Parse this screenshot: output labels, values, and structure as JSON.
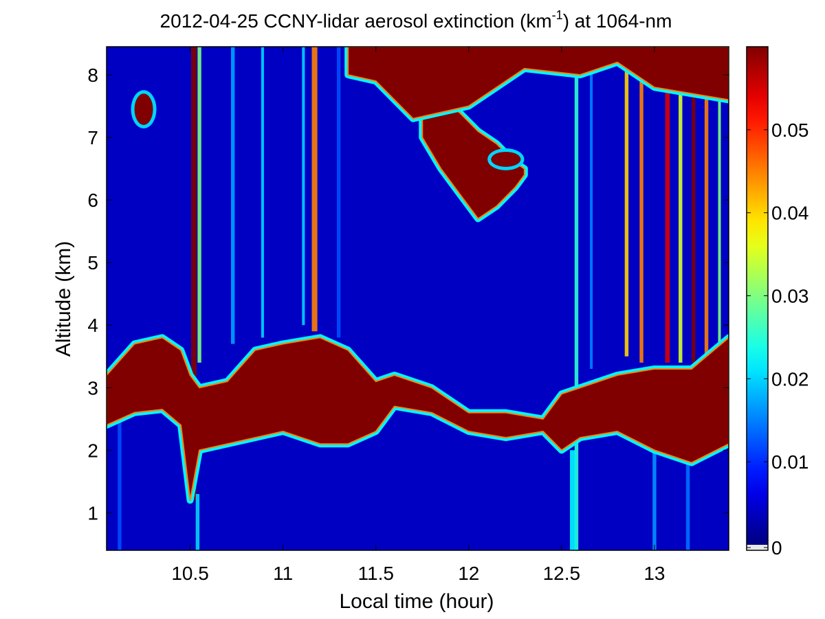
{
  "chart_data": {
    "type": "heatmap",
    "title": {
      "prefix": "2012-04-25 CCNY-lidar aerosol extinction (km",
      "superscript": "-1",
      "suffix": ") at 1064-nm"
    },
    "xlabel": "Local time (hour)",
    "ylabel": "Altitude (km)",
    "xlim": [
      10.05,
      13.4
    ],
    "ylim": [
      0.4,
      8.45
    ],
    "xticks": [
      10.5,
      11,
      11.5,
      12,
      12.5,
      13
    ],
    "xtick_labels": [
      "10.5",
      "11",
      "11.5",
      "12",
      "12.5",
      "13"
    ],
    "yticks": [
      1,
      2,
      3,
      4,
      5,
      6,
      7,
      8
    ],
    "ytick_labels": [
      "1",
      "2",
      "3",
      "4",
      "5",
      "6",
      "7",
      "8"
    ],
    "colorbar": {
      "colormap": "jet",
      "range": [
        0,
        0.06
      ],
      "ticks": [
        0,
        0.01,
        0.02,
        0.03,
        0.04,
        0.05
      ],
      "tick_labels": [
        "0",
        "0.01",
        "0.02",
        "0.03",
        "0.04",
        "0.05"
      ]
    },
    "background": "0.004",
    "features": [
      {
        "name": "boundary layer aerosol top",
        "kind": "layer",
        "x": [
          10.05,
          10.2,
          10.35,
          10.45,
          10.5,
          10.55,
          10.7,
          10.85,
          11.0,
          11.2,
          11.35,
          11.5,
          11.6,
          11.8,
          12.0,
          12.2,
          12.4,
          12.5,
          12.6,
          12.8,
          13.0,
          13.2,
          13.4
        ],
        "top": [
          3.2,
          3.7,
          3.8,
          3.6,
          3.2,
          3.0,
          3.1,
          3.6,
          3.7,
          3.8,
          3.6,
          3.1,
          3.2,
          3.0,
          2.6,
          2.6,
          2.5,
          2.9,
          3.0,
          3.2,
          3.3,
          3.3,
          3.8
        ],
        "bottom": [
          2.4,
          2.6,
          2.65,
          2.4,
          1.2,
          2.0,
          2.1,
          2.2,
          2.3,
          2.1,
          2.1,
          2.3,
          2.7,
          2.6,
          2.3,
          2.2,
          2.3,
          2.0,
          2.2,
          2.3,
          2.0,
          1.8,
          2.1
        ],
        "value": 0.06
      },
      {
        "name": "mid-level smoke plume",
        "kind": "plume",
        "x": [
          11.75,
          11.85,
          11.95,
          12.05,
          12.15,
          12.25,
          12.3
        ],
        "top": [
          7.9,
          7.6,
          7.4,
          7.1,
          6.9,
          6.6,
          6.5
        ],
        "bottom": [
          7.0,
          6.5,
          6.1,
          5.7,
          5.9,
          6.2,
          6.4
        ],
        "value": 0.06
      },
      {
        "name": "upper layer",
        "kind": "layer",
        "x": [
          11.35,
          11.5,
          11.7,
          12.0,
          12.3,
          12.6,
          12.8,
          13.0,
          13.4
        ],
        "top": [
          8.45,
          8.45,
          8.45,
          8.45,
          8.45,
          8.45,
          8.45,
          8.45,
          8.45
        ],
        "bottom": [
          8.0,
          7.9,
          7.3,
          7.5,
          8.1,
          8.0,
          8.2,
          7.8,
          7.6
        ],
        "value": 0.06
      },
      {
        "name": "isolated cloud",
        "kind": "blob",
        "cx": 10.25,
        "cy": 7.45,
        "rx": 0.05,
        "ry": 0.25,
        "value": 0.06
      },
      {
        "name": "cloud fragment",
        "kind": "blob",
        "cx": 12.2,
        "cy": 6.65,
        "rx": 0.08,
        "ry": 0.12,
        "value": 0.06
      }
    ],
    "columns": [
      {
        "x": 10.12,
        "width": 0.02,
        "y0": 0.4,
        "y1": 3.2,
        "value": 0.012
      },
      {
        "x": 10.52,
        "width": 0.03,
        "y0": 1.2,
        "y1": 8.45,
        "value": 0.06
      },
      {
        "x": 10.55,
        "width": 0.02,
        "y0": 3.4,
        "y1": 8.45,
        "value": 0.03
      },
      {
        "x": 10.54,
        "width": 0.02,
        "y0": 0.4,
        "y1": 1.3,
        "value": 0.02
      },
      {
        "x": 10.73,
        "width": 0.02,
        "y0": 3.7,
        "y1": 8.45,
        "value": 0.017
      },
      {
        "x": 10.89,
        "width": 0.015,
        "y0": 3.8,
        "y1": 8.45,
        "value": 0.02
      },
      {
        "x": 11.17,
        "width": 0.03,
        "y0": 3.9,
        "y1": 8.45,
        "value": 0.045
      },
      {
        "x": 11.11,
        "width": 0.015,
        "y0": 4.0,
        "y1": 8.45,
        "value": 0.02
      },
      {
        "x": 11.3,
        "width": 0.02,
        "y0": 3.8,
        "y1": 8.45,
        "value": 0.012
      },
      {
        "x": 12.58,
        "width": 0.02,
        "y0": 0.4,
        "y1": 8.45,
        "value": 0.025
      },
      {
        "x": 12.66,
        "width": 0.015,
        "y0": 3.3,
        "y1": 8.45,
        "value": 0.015
      },
      {
        "x": 12.85,
        "width": 0.02,
        "y0": 3.5,
        "y1": 8.45,
        "value": 0.04
      },
      {
        "x": 12.93,
        "width": 0.02,
        "y0": 3.4,
        "y1": 8.45,
        "value": 0.045
      },
      {
        "x": 13.07,
        "width": 0.025,
        "y0": 3.4,
        "y1": 8.45,
        "value": 0.055
      },
      {
        "x": 13.14,
        "width": 0.02,
        "y0": 3.4,
        "y1": 8.45,
        "value": 0.035
      },
      {
        "x": 13.21,
        "width": 0.02,
        "y0": 3.4,
        "y1": 8.45,
        "value": 0.06
      },
      {
        "x": 13.28,
        "width": 0.02,
        "y0": 3.4,
        "y1": 8.45,
        "value": 0.045
      },
      {
        "x": 13.35,
        "width": 0.015,
        "y0": 3.6,
        "y1": 8.45,
        "value": 0.03
      },
      {
        "x": 12.56,
        "width": 0.03,
        "y0": 0.4,
        "y1": 2.0,
        "value": 0.022
      },
      {
        "x": 13.0,
        "width": 0.02,
        "y0": 0.4,
        "y1": 2.0,
        "value": 0.016
      },
      {
        "x": 13.18,
        "width": 0.02,
        "y0": 0.4,
        "y1": 1.8,
        "value": 0.014
      }
    ]
  }
}
